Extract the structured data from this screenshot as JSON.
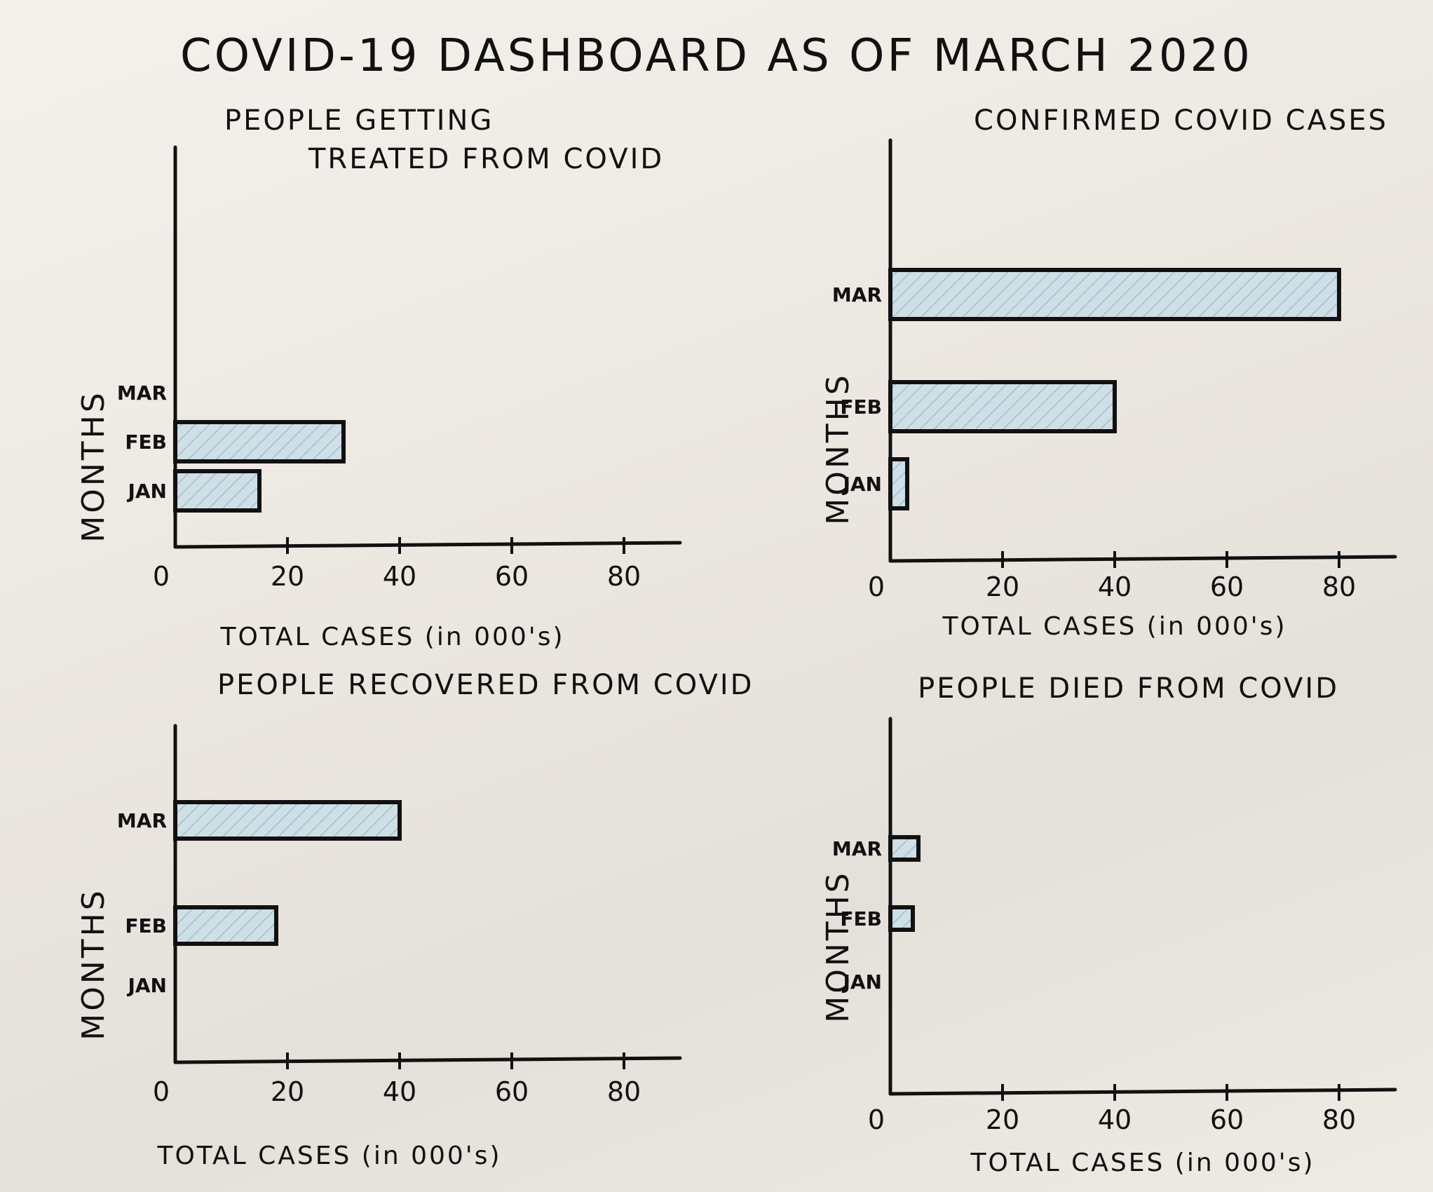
{
  "title": "COVID-19 DASHBOARD AS OF MARCH 2020",
  "colors": {
    "bar_fill": "#cfdfe6",
    "hatch": "#9fc0d1",
    "ink": "#111111"
  },
  "chart_data": [
    {
      "type": "bar",
      "orientation": "horizontal",
      "title": "PEOPLE GETTING TREATED FROM COVID",
      "xlabel": "TOTAL CASES (in 000's)",
      "ylabel": "MONTHS",
      "categories": [
        "JAN",
        "FEB",
        "MAR"
      ],
      "values": [
        15,
        30,
        0
      ],
      "xlim": [
        0,
        90
      ],
      "xticks": [
        0,
        20,
        40,
        60,
        80
      ]
    },
    {
      "type": "bar",
      "orientation": "horizontal",
      "title": "CONFIRMED COVID CASES",
      "xlabel": "TOTAL CASES (in 000's)",
      "ylabel": "MONTHS",
      "categories": [
        "JAN",
        "FEB",
        "MAR"
      ],
      "values": [
        3,
        40,
        80
      ],
      "xlim": [
        0,
        90
      ],
      "xticks": [
        0,
        20,
        40,
        60,
        80
      ]
    },
    {
      "type": "bar",
      "orientation": "horizontal",
      "title": "PEOPLE RECOVERED FROM COVID",
      "xlabel": "TOTAL CASES (in 000's)",
      "ylabel": "MONTHS",
      "categories": [
        "JAN",
        "FEB",
        "MAR"
      ],
      "values": [
        0,
        18,
        40
      ],
      "xlim": [
        0,
        90
      ],
      "xticks": [
        0,
        20,
        40,
        60,
        80
      ]
    },
    {
      "type": "bar",
      "orientation": "horizontal",
      "title": "PEOPLE DIED FROM COVID",
      "xlabel": "TOTAL CASES (in 000's)",
      "ylabel": "MONTHS",
      "categories": [
        "JAN",
        "FEB",
        "MAR"
      ],
      "values": [
        0,
        4,
        5
      ],
      "xlim": [
        0,
        90
      ],
      "xticks": [
        0,
        20,
        40,
        60,
        80
      ]
    }
  ]
}
